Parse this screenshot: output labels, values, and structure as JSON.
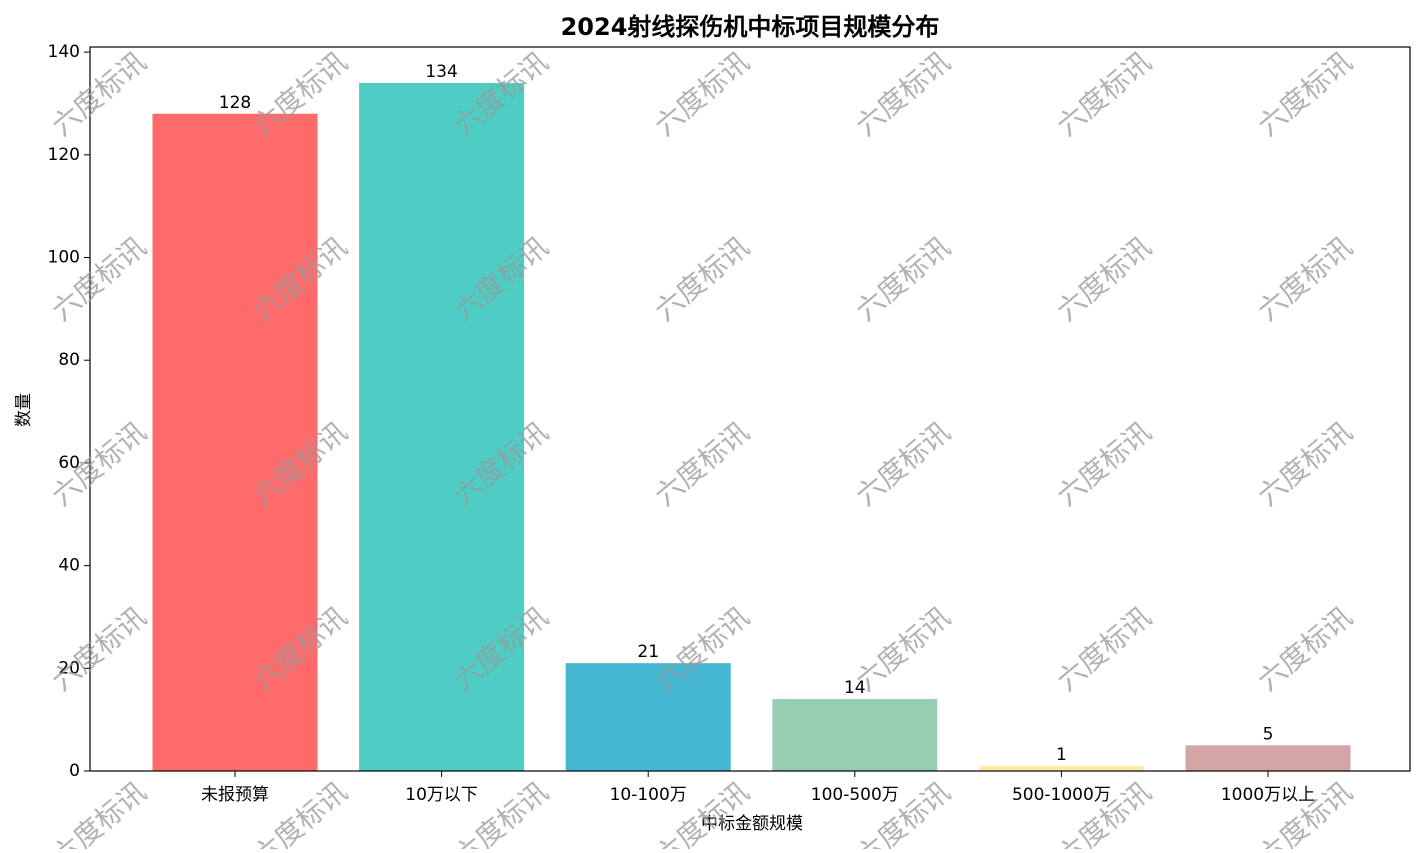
{
  "chart_data": {
    "type": "bar",
    "title": "2024射线探伤机中标项目规模分布",
    "categories": [
      "未报预算",
      "10万以下",
      "10-100万",
      "100-500万",
      "500-1000万",
      "1000万以上"
    ],
    "values": [
      128,
      134,
      21,
      14,
      1,
      5
    ],
    "colors": [
      "#ff6b6b",
      "#4ecdc4",
      "#45b7d1",
      "#96ceb4",
      "#ffeaa7",
      "#d4a5a5"
    ],
    "x_label": "中标金额规模",
    "y_label": "数量",
    "ylim": [
      0,
      141
    ],
    "yticks": [
      0,
      20,
      40,
      60,
      80,
      100,
      120,
      140
    ],
    "grid": false,
    "watermark": "六度标讯"
  }
}
